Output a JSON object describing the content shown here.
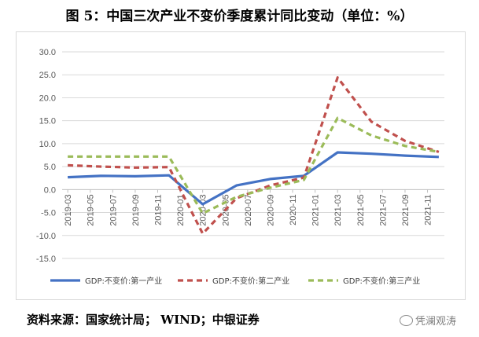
{
  "title": "图 5：中国三次产业不变价季度累计同比变动（单位：%）",
  "source": "资料来源：国家统计局； WIND；中银证券",
  "watermark": "凭澜观涛",
  "colors": {
    "series1": "#4472c4",
    "series2": "#c0504d",
    "series3": "#9bbb59"
  },
  "chart_data": {
    "type": "line",
    "title": "中国三次产业不变价季度累计同比变动（单位：%）",
    "xlabel": "",
    "ylabel": "",
    "ylim": [
      -15,
      30
    ],
    "yticks": [
      30.0,
      25.0,
      20.0,
      15.0,
      10.0,
      5.0,
      0.0,
      -5.0,
      -10.0,
      -15.0
    ],
    "ytick_labels": [
      "30.0",
      "25.0",
      "20.0",
      "15.0",
      "10.0",
      "5.0",
      "0.0",
      "-5.0",
      "-10.0",
      "-15.0"
    ],
    "categories": [
      "2019-03",
      "2019-05",
      "2019-07",
      "2019-09",
      "2019-11",
      "2020-01",
      "2020-03",
      "2020-05",
      "2020-07",
      "2020-09",
      "2020-11",
      "2021-01",
      "2021-03",
      "2021-05",
      "2021-07",
      "2021-09",
      "2021-11"
    ],
    "x": [
      "2019-03",
      "2019-06",
      "2019-09",
      "2019-12",
      "2020-03",
      "2020-06",
      "2020-09",
      "2020-12",
      "2021-03",
      "2021-06",
      "2021-09",
      "2021-12"
    ],
    "series": [
      {
        "name": "GDP:不变价:第一产业",
        "style": "solid",
        "values": [
          2.7,
          3.0,
          2.9,
          3.1,
          -3.2,
          0.9,
          2.3,
          3.0,
          8.1,
          7.8,
          7.4,
          7.1
        ]
      },
      {
        "name": "GDP:不变价:第二产业",
        "style": "dashed",
        "values": [
          5.3,
          5.0,
          4.8,
          4.9,
          -9.6,
          -1.9,
          0.9,
          2.6,
          24.4,
          14.8,
          10.6,
          8.2
        ]
      },
      {
        "name": "GDP:不变价:第三产业",
        "style": "dashed",
        "values": [
          7.2,
          7.2,
          7.2,
          7.2,
          -5.2,
          -1.6,
          0.4,
          2.1,
          15.6,
          11.8,
          9.5,
          8.2
        ]
      }
    ],
    "legend_position": "bottom",
    "grid": true
  }
}
